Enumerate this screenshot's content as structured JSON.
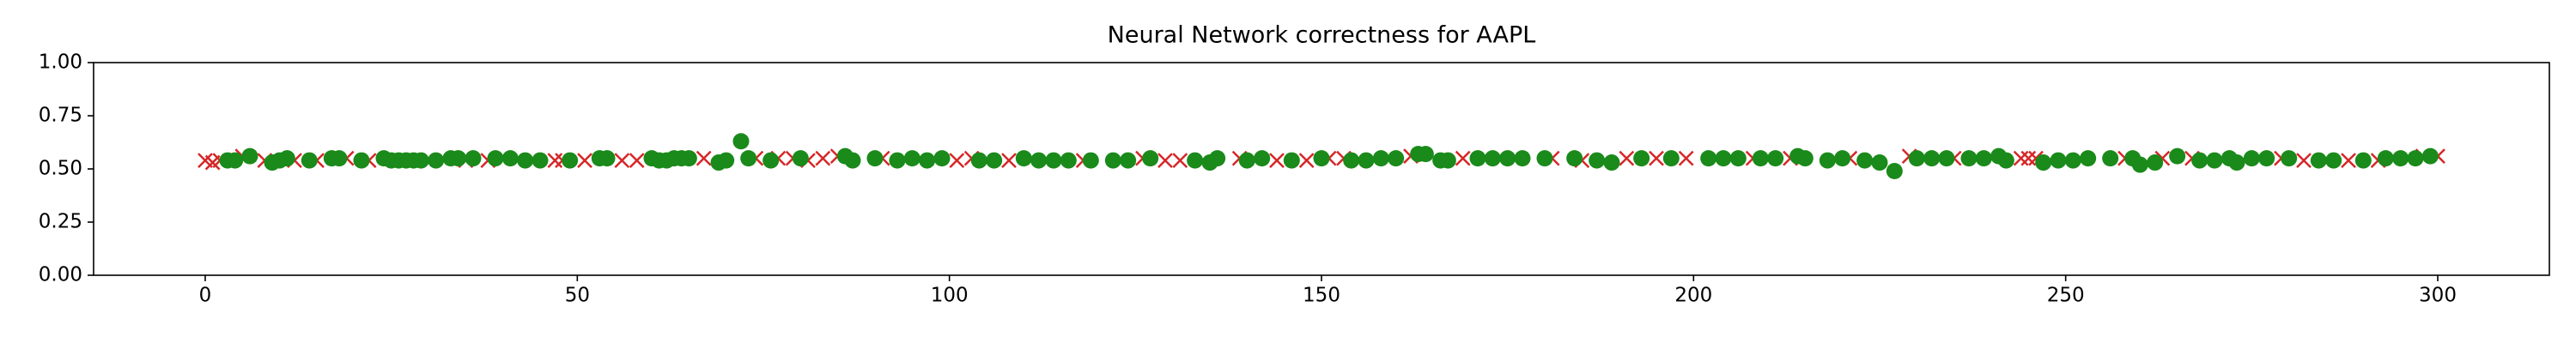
{
  "chart_data": {
    "type": "scatter",
    "title": "Neural Network correctness for AAPL",
    "xlim": [
      -15,
      315
    ],
    "xticks": [
      0,
      50,
      100,
      150,
      200,
      250,
      300
    ],
    "ylim": [
      0,
      1
    ],
    "yticks": [
      {
        "value": 0,
        "label": "0.00"
      },
      {
        "value": 0.25,
        "label": "0.25"
      },
      {
        "value": 0.5,
        "label": "0.50"
      },
      {
        "value": 0.75,
        "label": "0.75"
      },
      {
        "value": 1,
        "label": "1.00"
      }
    ],
    "series": [
      {
        "color": "#d62728",
        "marker": "x",
        "x": [
          0,
          1,
          2,
          5,
          8,
          12,
          15,
          19,
          22,
          30,
          35,
          38,
          47,
          48,
          51,
          56,
          58,
          67,
          74,
          77,
          79,
          81,
          83,
          85,
          91,
          101,
          103,
          108,
          118,
          126,
          129,
          131,
          139,
          144,
          148,
          151,
          153,
          162,
          169,
          181,
          185,
          191,
          195,
          199,
          208,
          213,
          221,
          229,
          235,
          244,
          245,
          246,
          258,
          263,
          267,
          279,
          282,
          288,
          292,
          298,
          300
        ],
        "values": [
          0.54,
          0.53,
          0.54,
          0.56,
          0.54,
          0.54,
          0.54,
          0.55,
          0.54,
          0.54,
          0.54,
          0.54,
          0.54,
          0.54,
          0.54,
          0.54,
          0.54,
          0.55,
          0.55,
          0.55,
          0.55,
          0.54,
          0.55,
          0.56,
          0.55,
          0.54,
          0.55,
          0.54,
          0.54,
          0.55,
          0.54,
          0.54,
          0.55,
          0.54,
          0.54,
          0.55,
          0.55,
          0.56,
          0.55,
          0.55,
          0.54,
          0.55,
          0.55,
          0.55,
          0.55,
          0.55,
          0.55,
          0.56,
          0.55,
          0.55,
          0.55,
          0.55,
          0.55,
          0.55,
          0.55,
          0.55,
          0.54,
          0.54,
          0.54,
          0.56,
          0.56
        ]
      },
      {
        "color": "#1a8a1a",
        "marker": "o",
        "x": [
          3,
          4,
          6,
          9,
          10,
          11,
          14,
          17,
          18,
          21,
          24,
          25,
          26,
          27,
          28,
          29,
          31,
          33,
          34,
          36,
          39,
          41,
          43,
          45,
          49,
          53,
          54,
          60,
          61,
          62,
          63,
          64,
          65,
          69,
          70,
          72,
          73,
          76,
          80,
          86,
          87,
          90,
          93,
          95,
          97,
          99,
          104,
          106,
          110,
          112,
          114,
          116,
          119,
          122,
          124,
          127,
          133,
          135,
          136,
          140,
          142,
          146,
          150,
          154,
          156,
          158,
          160,
          163,
          164,
          166,
          167,
          171,
          173,
          175,
          177,
          180,
          184,
          187,
          189,
          193,
          197,
          202,
          204,
          206,
          209,
          211,
          214,
          215,
          218,
          220,
          223,
          225,
          227,
          230,
          232,
          234,
          237,
          239,
          241,
          242,
          247,
          249,
          251,
          253,
          256,
          259,
          260,
          262,
          265,
          268,
          270,
          272,
          273,
          275,
          277,
          280,
          284,
          286,
          290,
          293,
          295,
          297,
          299
        ],
        "values": [
          0.54,
          0.54,
          0.56,
          0.53,
          0.54,
          0.55,
          0.54,
          0.55,
          0.55,
          0.54,
          0.55,
          0.54,
          0.54,
          0.54,
          0.54,
          0.54,
          0.54,
          0.55,
          0.55,
          0.55,
          0.55,
          0.55,
          0.54,
          0.54,
          0.54,
          0.55,
          0.55,
          0.55,
          0.54,
          0.54,
          0.55,
          0.55,
          0.55,
          0.53,
          0.54,
          0.63,
          0.55,
          0.54,
          0.55,
          0.56,
          0.54,
          0.55,
          0.54,
          0.55,
          0.54,
          0.55,
          0.54,
          0.54,
          0.55,
          0.54,
          0.54,
          0.54,
          0.54,
          0.54,
          0.54,
          0.55,
          0.54,
          0.53,
          0.55,
          0.54,
          0.55,
          0.54,
          0.55,
          0.54,
          0.54,
          0.55,
          0.55,
          0.57,
          0.57,
          0.54,
          0.54,
          0.55,
          0.55,
          0.55,
          0.55,
          0.55,
          0.55,
          0.54,
          0.53,
          0.55,
          0.55,
          0.55,
          0.55,
          0.55,
          0.55,
          0.55,
          0.56,
          0.55,
          0.54,
          0.55,
          0.54,
          0.53,
          0.49,
          0.55,
          0.55,
          0.55,
          0.55,
          0.55,
          0.56,
          0.54,
          0.53,
          0.54,
          0.54,
          0.55,
          0.55,
          0.55,
          0.52,
          0.53,
          0.56,
          0.54,
          0.54,
          0.55,
          0.53,
          0.55,
          0.55,
          0.55,
          0.54,
          0.54,
          0.54,
          0.55,
          0.55,
          0.55,
          0.56
        ]
      }
    ]
  }
}
